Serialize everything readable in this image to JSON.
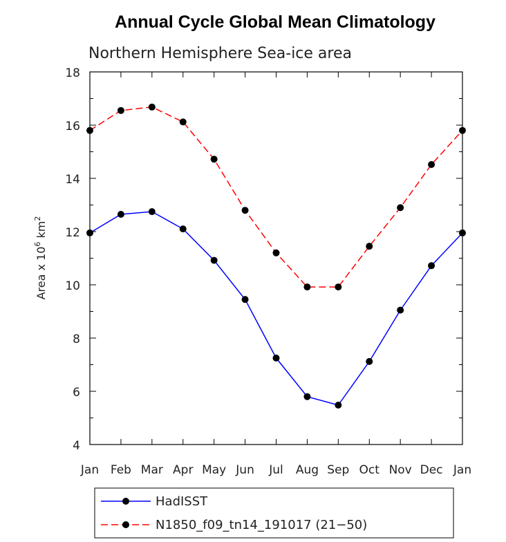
{
  "chart_data": {
    "type": "line",
    "title": "Annual Cycle Global Mean Climatology",
    "subtitle": "Northern Hemisphere Sea-ice area",
    "ylabel": "Area x 10",
    "ylabel_exponent": "6",
    "ylabel_unit": "km",
    "ylabel_unit_exponent": "2",
    "ylim": [
      4,
      18
    ],
    "yticks": [
      "4",
      "6",
      "8",
      "10",
      "12",
      "14",
      "16",
      "18"
    ],
    "categories": [
      "Jan",
      "Feb",
      "Mar",
      "Apr",
      "May",
      "Jun",
      "Jul",
      "Aug",
      "Sep",
      "Oct",
      "Nov",
      "Dec",
      "Jan"
    ],
    "series": [
      {
        "name": "HadISST",
        "color": "#0000ff",
        "dash": "solid",
        "values": [
          11.95,
          12.65,
          12.75,
          12.1,
          10.92,
          9.45,
          7.25,
          5.8,
          5.48,
          7.12,
          9.05,
          10.72,
          11.95
        ]
      },
      {
        "name": "N1850_f09_tn14_191017 (21−50)",
        "color": "#ff0000",
        "dash": "dashed",
        "values": [
          15.8,
          16.55,
          16.68,
          16.12,
          14.72,
          12.8,
          11.2,
          9.92,
          9.92,
          11.45,
          12.9,
          14.52,
          15.8
        ]
      }
    ]
  }
}
